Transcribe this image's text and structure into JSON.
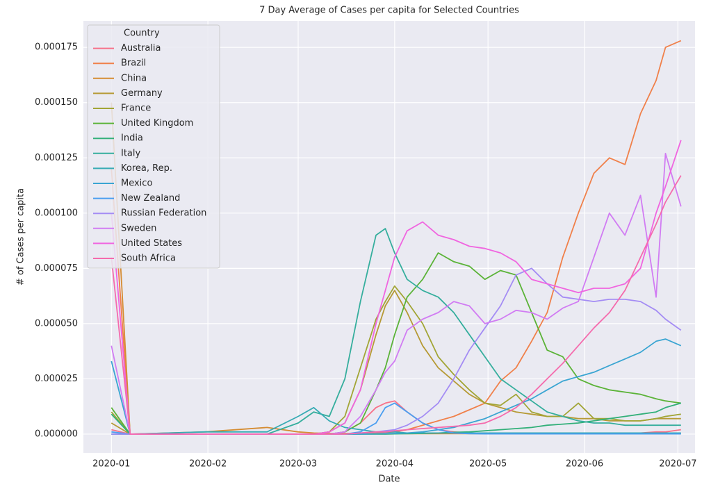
{
  "chart_data": {
    "type": "line",
    "title": "7 Day Average of Cases per capita for Selected Countries",
    "xlabel": "Date",
    "ylabel": "# of Cases per capita",
    "legend_title": "Country",
    "legend": "upper left",
    "grid": true,
    "x": [
      0,
      6,
      30,
      50,
      60,
      65,
      70,
      75,
      80,
      85,
      88,
      91,
      95,
      100,
      105,
      110,
      115,
      120,
      125,
      130,
      135,
      140,
      145,
      150,
      155,
      160,
      165,
      170,
      175,
      178,
      183
    ],
    "xlim": [
      -9,
      187.5
    ],
    "xticks": [
      {
        "value": 0,
        "label": "2020-01"
      },
      {
        "value": 31,
        "label": "2020-02"
      },
      {
        "value": 60,
        "label": "2020-03"
      },
      {
        "value": 91,
        "label": "2020-04"
      },
      {
        "value": 121,
        "label": "2020-05"
      },
      {
        "value": 152,
        "label": "2020-06"
      },
      {
        "value": 182,
        "label": "2020-07"
      }
    ],
    "ylim": [
      -8.5e-06,
      0.000187
    ],
    "yticks": [
      {
        "value": 0,
        "label": "0.000000"
      },
      {
        "value": 2.5e-05,
        "label": "0.000025"
      },
      {
        "value": 5e-05,
        "label": "0.000050"
      },
      {
        "value": 7.5e-05,
        "label": "0.000075"
      },
      {
        "value": 0.0001,
        "label": "0.000100"
      },
      {
        "value": 0.000125,
        "label": "0.000125"
      },
      {
        "value": 0.00015,
        "label": "0.000150"
      },
      {
        "value": 0.000175,
        "label": "0.000175"
      }
    ],
    "series": [
      {
        "name": "Australia",
        "color": "#f77189",
        "values": [
          2e-06,
          0,
          0,
          0,
          0,
          0,
          0,
          1e-06,
          5e-06,
          1.2e-05,
          1.4e-05,
          1.5e-05,
          1e-05,
          5e-06,
          2e-06,
          1e-06,
          5e-07,
          3e-07,
          3e-07,
          3e-07,
          3e-07,
          3e-07,
          5e-07,
          5e-07,
          5e-07,
          5e-07,
          5e-07,
          5e-07,
          1e-06,
          1e-06,
          2e-06
        ]
      },
      {
        "name": "Brazil",
        "color": "#f0804a",
        "values": [
          0.00012,
          0,
          0,
          0,
          0,
          0,
          0,
          0,
          0,
          5e-07,
          8e-07,
          1e-06,
          2e-06,
          4e-06,
          6e-06,
          8e-06,
          1.1e-05,
          1.4e-05,
          2.4e-05,
          3e-05,
          4.2e-05,
          5.5e-05,
          8e-05,
          0.0001,
          0.000118,
          0.000125,
          0.000122,
          0.000145,
          0.00016,
          0.000175,
          0.000178
        ]
      },
      {
        "name": "China",
        "color": "#d58c32",
        "values": [
          0.00015,
          0,
          1e-06,
          3e-06,
          1e-06,
          5e-07,
          3e-07,
          3e-07,
          3e-07,
          3e-07,
          3e-07,
          3e-07,
          2e-07,
          2e-07,
          2e-07,
          2e-07,
          2e-07,
          2e-07,
          2e-07,
          2e-07,
          2e-07,
          2e-07,
          2e-07,
          2e-07,
          2e-07,
          2e-07,
          2e-07,
          2e-07,
          2e-07,
          2e-07,
          2e-07
        ]
      },
      {
        "name": "Germany",
        "color": "#b69a35",
        "values": [
          5e-06,
          0,
          0,
          0,
          0,
          0,
          1e-06,
          5e-06,
          2e-05,
          4.5e-05,
          5.8e-05,
          6.5e-05,
          5.5e-05,
          4e-05,
          3e-05,
          2.4e-05,
          1.8e-05,
          1.4e-05,
          1.2e-05,
          1e-05,
          9e-06,
          8e-06,
          8e-06,
          7e-06,
          7e-06,
          6e-06,
          6e-06,
          6e-06,
          7e-06,
          7e-06,
          7e-06
        ]
      },
      {
        "name": "France",
        "color": "#a2a536",
        "values": [
          1e-05,
          0,
          0,
          0,
          0,
          0,
          1e-06,
          8e-06,
          3e-05,
          5.2e-05,
          6e-05,
          6.7e-05,
          6e-05,
          5e-05,
          3.5e-05,
          2.7e-05,
          2e-05,
          1.4e-05,
          1.3e-05,
          1.8e-05,
          1e-05,
          8e-06,
          8e-06,
          1.4e-05,
          7e-06,
          7e-06,
          6e-06,
          6e-06,
          7e-06,
          8e-06,
          9e-06
        ]
      },
      {
        "name": "United Kingdom",
        "color": "#5bb338",
        "values": [
          1.2e-05,
          0,
          0,
          0,
          0,
          0,
          0,
          1e-06,
          5e-06,
          2e-05,
          3e-05,
          4.5e-05,
          6.2e-05,
          7e-05,
          8.2e-05,
          7.8e-05,
          7.6e-05,
          7e-05,
          7.4e-05,
          7.2e-05,
          5.5e-05,
          3.8e-05,
          3.5e-05,
          2.5e-05,
          2.2e-05,
          2e-05,
          1.9e-05,
          1.8e-05,
          1.6e-05,
          1.5e-05,
          1.4e-05
        ]
      },
      {
        "name": "India",
        "color": "#33b07a",
        "values": [
          9e-06,
          0,
          0,
          0,
          0,
          0,
          0,
          0,
          0,
          0,
          0,
          1e-07,
          2e-07,
          3e-07,
          5e-07,
          8e-07,
          1e-06,
          1.5e-06,
          2e-06,
          2.5e-06,
          3e-06,
          4e-06,
          4.5e-06,
          5e-06,
          6e-06,
          7e-06,
          8e-06,
          9e-06,
          1e-05,
          1.2e-05,
          1.4e-05
        ]
      },
      {
        "name": "Italy",
        "color": "#35ae9d",
        "values": [
          0,
          0,
          0,
          0,
          5e-06,
          1e-05,
          8e-06,
          2.5e-05,
          6e-05,
          9e-05,
          9.3e-05,
          8.2e-05,
          7e-05,
          6.5e-05,
          6.2e-05,
          5.5e-05,
          4.5e-05,
          3.5e-05,
          2.5e-05,
          2e-05,
          1.5e-05,
          1e-05,
          8e-06,
          6e-06,
          5e-06,
          5e-06,
          4e-06,
          4e-06,
          4e-06,
          4e-06,
          4e-06
        ]
      },
      {
        "name": "Korea, Rep.",
        "color": "#37abb4",
        "values": [
          0,
          0,
          1e-06,
          1e-06,
          8e-06,
          1.2e-05,
          6e-06,
          3e-06,
          2e-06,
          1e-06,
          1e-06,
          1e-06,
          5e-07,
          5e-07,
          5e-07,
          5e-07,
          5e-07,
          5e-07,
          5e-07,
          5e-07,
          5e-07,
          5e-07,
          5e-07,
          5e-07,
          5e-07,
          5e-07,
          5e-07,
          5e-07,
          5e-07,
          5e-07,
          5e-07
        ]
      },
      {
        "name": "Mexico",
        "color": "#3aa5d2",
        "values": [
          3.3e-05,
          0,
          0,
          0,
          0,
          0,
          0,
          0,
          0,
          1e-07,
          2e-07,
          3e-07,
          5e-07,
          1e-06,
          2e-06,
          3e-06,
          5e-06,
          7e-06,
          1e-05,
          1.3e-05,
          1.6e-05,
          2e-05,
          2.4e-05,
          2.6e-05,
          2.8e-05,
          3.1e-05,
          3.4e-05,
          3.7e-05,
          4.2e-05,
          4.3e-05,
          4e-05
        ]
      },
      {
        "name": "New Zealand",
        "color": "#4a9ef0",
        "values": [
          1e-06,
          0,
          0,
          0,
          0,
          0,
          0,
          0,
          1e-06,
          5e-06,
          1.2e-05,
          1.4e-05,
          1e-05,
          5e-06,
          2e-06,
          5e-07,
          2e-07,
          1e-07,
          1e-07,
          1e-07,
          1e-07,
          1e-07,
          1e-07,
          1e-07,
          1e-07,
          1e-07,
          1e-07,
          1e-07,
          1e-07,
          1e-07,
          1e-07
        ]
      },
      {
        "name": "Russian Federation",
        "color": "#a48cf4",
        "values": [
          0,
          0,
          0,
          0,
          0,
          0,
          0,
          0,
          5e-07,
          1e-06,
          1.5e-06,
          2e-06,
          4e-06,
          8e-06,
          1.4e-05,
          2.5e-05,
          3.8e-05,
          4.8e-05,
          5.8e-05,
          7.2e-05,
          7.5e-05,
          6.8e-05,
          6.2e-05,
          6.1e-05,
          6e-05,
          6.1e-05,
          6.1e-05,
          6e-05,
          5.6e-05,
          5.2e-05,
          4.7e-05
        ]
      },
      {
        "name": "Sweden",
        "color": "#d17cf3",
        "values": [
          4e-05,
          0,
          0,
          0,
          0,
          0,
          0,
          1e-06,
          8e-06,
          2e-05,
          2.8e-05,
          3.3e-05,
          4.7e-05,
          5.2e-05,
          5.5e-05,
          6e-05,
          5.8e-05,
          5e-05,
          5.2e-05,
          5.6e-05,
          5.5e-05,
          5.2e-05,
          5.7e-05,
          6e-05,
          8e-05,
          0.0001,
          9e-05,
          0.000108,
          6.2e-05,
          0.000127,
          0.000103
        ]
      },
      {
        "name": "United States",
        "color": "#f065e0",
        "values": [
          0.0001,
          0,
          0,
          0,
          0,
          0,
          1e-06,
          5e-06,
          2e-05,
          5e-05,
          6.5e-05,
          8e-05,
          9.2e-05,
          9.6e-05,
          9e-05,
          8.8e-05,
          8.5e-05,
          8.4e-05,
          8.2e-05,
          7.8e-05,
          7e-05,
          6.8e-05,
          6.6e-05,
          6.4e-05,
          6.6e-05,
          6.6e-05,
          6.8e-05,
          7.5e-05,
          0.0001,
          0.000112,
          0.000133
        ]
      },
      {
        "name": "South Africa",
        "color": "#f56bad",
        "values": [
          8e-05,
          0,
          0,
          0,
          0,
          0,
          0,
          0,
          5e-07,
          1e-06,
          1e-06,
          1.5e-06,
          2e-06,
          2.5e-06,
          3e-06,
          3.5e-06,
          4e-06,
          5e-06,
          8e-06,
          1.2e-05,
          1.8e-05,
          2.5e-05,
          3.2e-05,
          4e-05,
          4.8e-05,
          5.5e-05,
          6.5e-05,
          8e-05,
          9.5e-05,
          0.000105,
          0.000117
        ]
      }
    ]
  }
}
